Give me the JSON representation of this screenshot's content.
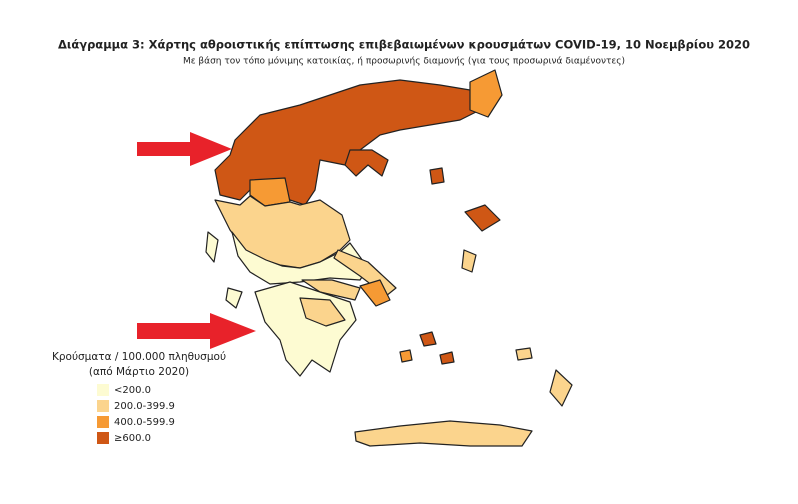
{
  "title": "Διάγραμμα 3: Χάρτης αθροιστικής επίπτωσης επιβεβαιωμένων κρουσμάτων COVID-19, 10 Νοεμβρίου 2020",
  "subtitle": "Με βάση τον τόπο μόνιμης κατοικίας, ή προσωρινής διαμονής (για τους προσωρινά διαμένοντες)",
  "legend": {
    "title": [
      "Κρούσματα / 100.000 πληθυσμού",
      "(από Μάρτιο 2020)"
    ],
    "items": [
      {
        "label": "<200.0",
        "color": "#fdfbd2"
      },
      {
        "label": "200.0-399.9",
        "color": "#fbd48d"
      },
      {
        "label": "400.0-599.9",
        "color": "#f69a34"
      },
      {
        "label": "≥600.0",
        "color": "#cf5715"
      }
    ]
  }
}
